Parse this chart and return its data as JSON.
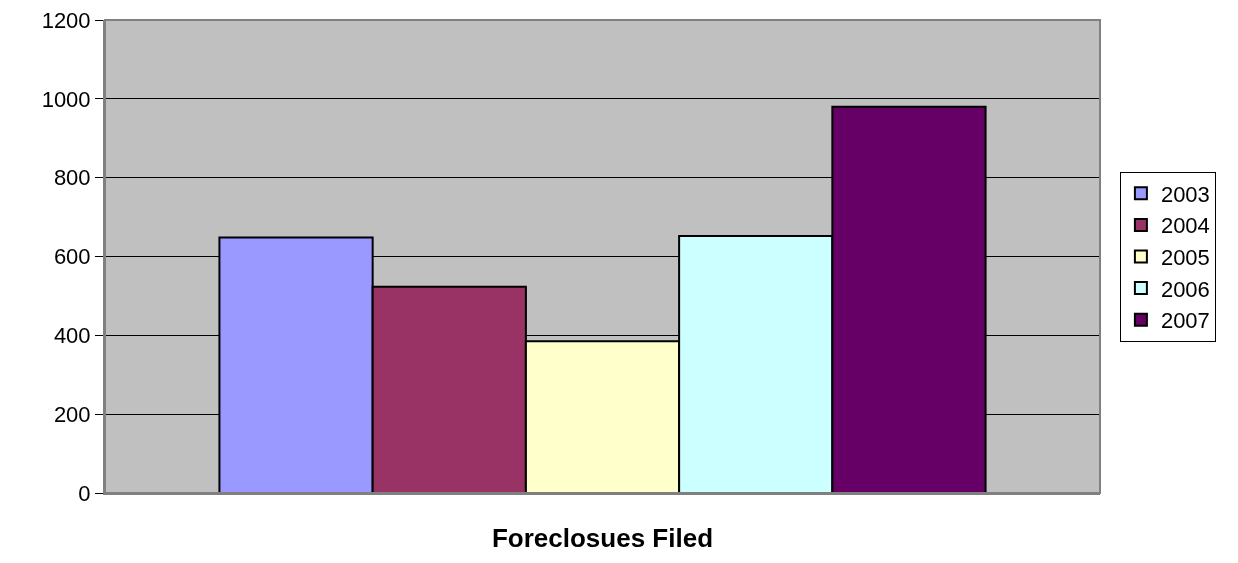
{
  "chart_data": {
    "type": "bar",
    "xlabel": "Foreclosues Filed",
    "categories": [
      null
    ],
    "series": [
      {
        "name": "2003",
        "color": "#9999ff",
        "values": [
          648
        ]
      },
      {
        "name": "2004",
        "color": "#993366",
        "values": [
          523
        ]
      },
      {
        "name": "2005",
        "color": "#ffffcc",
        "values": [
          385
        ]
      },
      {
        "name": "2006",
        "color": "#ccffff",
        "values": [
          652
        ]
      },
      {
        "name": "2007",
        "color": "#660066",
        "values": [
          980
        ]
      }
    ],
    "ylim": [
      0,
      1200
    ],
    "yticks": [
      0,
      200,
      400,
      600,
      800,
      1000,
      1200
    ],
    "grid": "y",
    "legend": "right"
  }
}
